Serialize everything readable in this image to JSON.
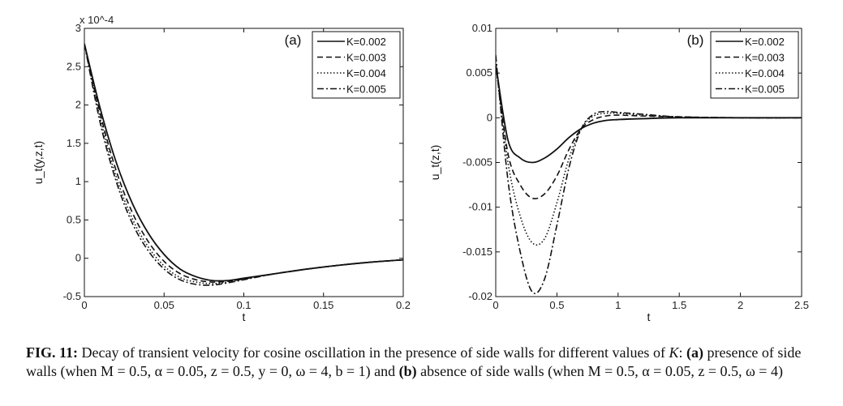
{
  "chart_data": [
    {
      "type": "line",
      "panel_label": "(a)",
      "xlabel": "t",
      "ylabel": "u_t(y,z,t)",
      "scale_note": "x 10^-4",
      "xlim": [
        0,
        0.2
      ],
      "ylim": [
        -0.5,
        3
      ],
      "xticks": [
        "0",
        "0.05",
        "0.1",
        "0.15",
        "0.2"
      ],
      "yticks": [
        "-0.5",
        "0",
        "0.5",
        "1",
        "1.5",
        "2",
        "2.5",
        "3"
      ],
      "grid": false,
      "legend": "top-right",
      "series": [
        {
          "name": "K=0.002",
          "style": "solid",
          "x": [
            0,
            0.01,
            0.02,
            0.03,
            0.04,
            0.05,
            0.06,
            0.07,
            0.08,
            0.09,
            0.1,
            0.12,
            0.14,
            0.16,
            0.18,
            0.2
          ],
          "y": [
            2.8,
            1.95,
            1.25,
            0.72,
            0.33,
            0.05,
            -0.14,
            -0.24,
            -0.29,
            -0.29,
            -0.26,
            -0.2,
            -0.14,
            -0.09,
            -0.05,
            -0.02
          ]
        },
        {
          "name": "K=0.003",
          "style": "dashed",
          "x": [
            0,
            0.01,
            0.02,
            0.03,
            0.04,
            0.05,
            0.06,
            0.07,
            0.08,
            0.09,
            0.1,
            0.12,
            0.14,
            0.16,
            0.18,
            0.2
          ],
          "y": [
            2.8,
            1.88,
            1.14,
            0.6,
            0.22,
            -0.04,
            -0.2,
            -0.28,
            -0.31,
            -0.3,
            -0.27,
            -0.2,
            -0.14,
            -0.09,
            -0.05,
            -0.02
          ]
        },
        {
          "name": "K=0.004",
          "style": "dotted",
          "x": [
            0,
            0.01,
            0.02,
            0.03,
            0.04,
            0.05,
            0.06,
            0.07,
            0.08,
            0.09,
            0.1,
            0.12,
            0.14,
            0.16,
            0.18,
            0.2
          ],
          "y": [
            2.8,
            1.82,
            1.06,
            0.52,
            0.15,
            -0.1,
            -0.25,
            -0.31,
            -0.33,
            -0.31,
            -0.27,
            -0.2,
            -0.14,
            -0.09,
            -0.05,
            -0.02
          ]
        },
        {
          "name": "K=0.005",
          "style": "dashdot",
          "x": [
            0,
            0.01,
            0.02,
            0.03,
            0.04,
            0.05,
            0.06,
            0.07,
            0.08,
            0.09,
            0.1,
            0.12,
            0.14,
            0.16,
            0.18,
            0.2
          ],
          "y": [
            2.8,
            1.76,
            1.0,
            0.46,
            0.1,
            -0.14,
            -0.28,
            -0.34,
            -0.35,
            -0.32,
            -0.28,
            -0.2,
            -0.14,
            -0.09,
            -0.05,
            -0.02
          ]
        }
      ]
    },
    {
      "type": "line",
      "panel_label": "(b)",
      "xlabel": "t",
      "ylabel": "u_t(z,t)",
      "xlim": [
        0,
        2.5
      ],
      "ylim": [
        -0.02,
        0.01
      ],
      "xticks": [
        "0",
        "0.5",
        "1",
        "1.5",
        "2",
        "2.5"
      ],
      "yticks": [
        "-0.02",
        "-0.015",
        "-0.01",
        "-0.005",
        "0",
        "0.005",
        "0.01"
      ],
      "grid": false,
      "legend": "top-right",
      "series": [
        {
          "name": "K=0.002",
          "style": "solid",
          "x": [
            0,
            0.1,
            0.2,
            0.3,
            0.4,
            0.5,
            0.6,
            0.7,
            0.8,
            0.9,
            1.0,
            1.2,
            1.5,
            2.0,
            2.5
          ],
          "y": [
            0.006,
            -0.0025,
            -0.0045,
            -0.005,
            -0.0045,
            -0.0035,
            -0.0022,
            -0.0012,
            -0.0006,
            -0.0003,
            -0.0002,
            -0.0001,
            0,
            0,
            0
          ]
        },
        {
          "name": "K=0.003",
          "style": "dashed",
          "x": [
            0,
            0.1,
            0.2,
            0.3,
            0.4,
            0.5,
            0.6,
            0.7,
            0.8,
            0.9,
            1.0,
            1.2,
            1.5,
            2.0,
            2.5
          ],
          "y": [
            0.006,
            -0.004,
            -0.0075,
            -0.009,
            -0.0085,
            -0.0065,
            -0.0035,
            -0.0012,
            -0.0002,
            0.0002,
            0.0003,
            0.0002,
            0.0001,
            0,
            0
          ]
        },
        {
          "name": "K=0.004",
          "style": "dotted",
          "x": [
            0,
            0.1,
            0.2,
            0.3,
            0.4,
            0.5,
            0.6,
            0.7,
            0.8,
            0.9,
            1.0,
            1.2,
            1.5,
            2.0,
            2.5
          ],
          "y": [
            0.006,
            -0.005,
            -0.011,
            -0.014,
            -0.0135,
            -0.0095,
            -0.0045,
            -0.0012,
            0.0002,
            0.0005,
            0.0005,
            0.0003,
            0.0001,
            0,
            0
          ]
        },
        {
          "name": "K=0.005",
          "style": "dashdot",
          "x": [
            0,
            0.1,
            0.2,
            0.3,
            0.4,
            0.5,
            0.6,
            0.7,
            0.8,
            0.9,
            1.0,
            1.2,
            1.5,
            2.0,
            2.5
          ],
          "y": [
            0.007,
            -0.007,
            -0.015,
            -0.0195,
            -0.018,
            -0.012,
            -0.0055,
            -0.0012,
            0.0004,
            0.0007,
            0.0006,
            0.0004,
            0.0001,
            0,
            0
          ]
        }
      ]
    }
  ],
  "caption": {
    "fig_label": "FIG. 11:",
    "text1": " Decay of transient velocity for cosine oscillation in the presence of side walls for different values of ",
    "k_symbol": "K",
    "text2": ":",
    "part_a_label": "(a)",
    "part_a_text": " presence of side walls (when M = 0.5, α = 0.05, z = 0.5, y = 0, ω = 4, b = 1) and ",
    "part_b_label": "(b)",
    "part_b_text": " absence of side walls (when M = 0.5, α = 0.05, z = 0.5, ω = 4)"
  }
}
